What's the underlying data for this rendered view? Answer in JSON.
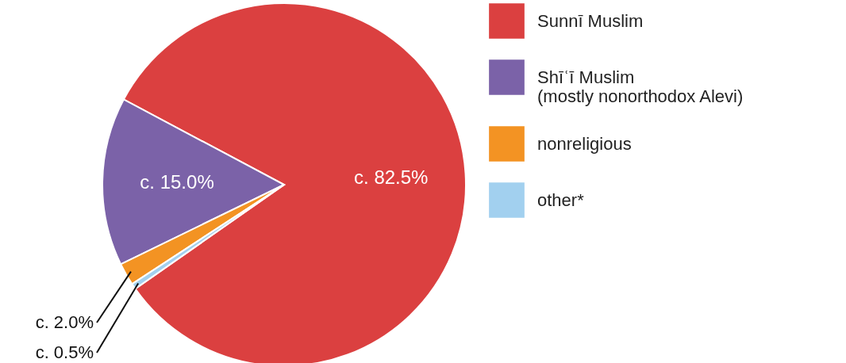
{
  "chart_data": {
    "type": "pie",
    "categories": [
      "Sunnī Muslim",
      "Shīʿī Muslim\n(mostly nonorthodox Alevi)",
      "nonreligious",
      "other*"
    ],
    "values": [
      82.5,
      15.0,
      2.0,
      0.5
    ],
    "colors": [
      "#db4040",
      "#7b62a8",
      "#f39323",
      "#a2d0ef"
    ],
    "value_labels": [
      "c. 82.5%",
      "c. 15.0%",
      "c. 2.0%",
      "c. 0.5%"
    ],
    "legend": "right"
  }
}
